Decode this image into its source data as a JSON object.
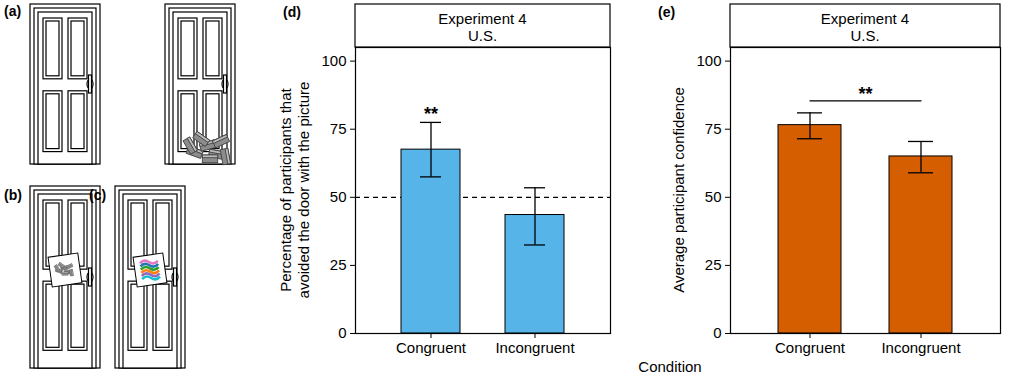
{
  "chart_data": [
    {
      "panel_label": "(d)",
      "type": "bar",
      "title": "Experiment 4",
      "subtitle": "U.S.",
      "categories": [
        "Congruent",
        "Incongruent"
      ],
      "values": [
        67.5,
        43.5
      ],
      "error_low": [
        57.5,
        32.5
      ],
      "error_high": [
        77.5,
        53.5
      ],
      "color": "#56b4e9",
      "ylabel": "Percentage of participants that avoided the door with the picture",
      "ylim": [
        0,
        105
      ],
      "yticks": [
        0,
        25,
        50,
        75,
        100
      ],
      "reference_line": {
        "value": 50,
        "line_style": "dashed"
      },
      "annotations": [
        {
          "text": "**",
          "category": "Congruent"
        }
      ]
    },
    {
      "panel_label": "(e)",
      "type": "bar",
      "title": "Experiment 4",
      "subtitle": "U.S.",
      "categories": [
        "Congruent",
        "Incongruent"
      ],
      "values": [
        76.5,
        65
      ],
      "error_low": [
        71.5,
        59
      ],
      "error_high": [
        81,
        70.5
      ],
      "color": "#d55e00",
      "ylabel": "Average participant confidence",
      "ylim": [
        0,
        105
      ],
      "yticks": [
        0,
        25,
        50,
        75,
        100
      ],
      "annotations": [
        {
          "text": "**",
          "from": "Congruent",
          "to": "Incongruent"
        }
      ]
    }
  ],
  "xlabel": "Condition",
  "illustration_labels": [
    "(a)",
    "(b)",
    "(c)"
  ]
}
